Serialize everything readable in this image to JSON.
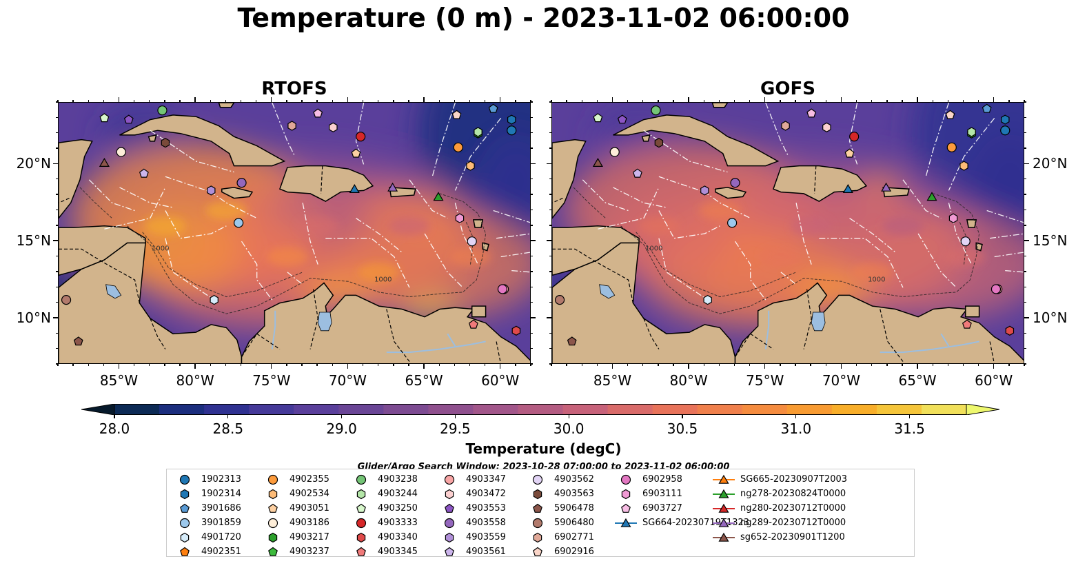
{
  "title": "Temperature (0 m) - 2023-11-02 06:00:00",
  "panels": [
    {
      "title": "RTOFS",
      "variant": "rtofs"
    },
    {
      "title": "GOFS",
      "variant": "gofs"
    }
  ],
  "map": {
    "lon_range": [
      -89,
      -58
    ],
    "lat_range": [
      7,
      24
    ],
    "lon_ticks": [
      "85°W",
      "80°W",
      "75°W",
      "70°W",
      "65°W",
      "60°W"
    ],
    "lat_ticks": [
      "20°N",
      "15°N",
      "10°N"
    ],
    "contour_labels": [
      "1000",
      "1000"
    ],
    "land_color": "#d2b48c",
    "water_color": "#9cbee0"
  },
  "colorbar": {
    "label": "Temperature (degC)",
    "tick_labels": [
      "28.0",
      "28.5",
      "29.0",
      "29.5",
      "30.0",
      "30.5",
      "31.0",
      "31.5"
    ],
    "vmin": 28.0,
    "vmax": 31.5,
    "colors": [
      "#06192b",
      "#0c2a55",
      "#1b2e7e",
      "#2f3191",
      "#453999",
      "#5a3f9b",
      "#6a4596",
      "#7d4b92",
      "#8f508e",
      "#a2568a",
      "#b45c82",
      "#c7627a",
      "#d96b6a",
      "#e8735a",
      "#f0804c",
      "#f58c3f",
      "#f89b32",
      "#f8ae2a",
      "#f5c53a",
      "#f1e05a",
      "#eef86e"
    ]
  },
  "search_window": "Glider/Argo Search Window: 2023-10-28 07:00:00 to 2023-11-02 06:00:00",
  "legend": [
    {
      "id": "1902313",
      "marker": "circle",
      "color": "#1f77b4"
    },
    {
      "id": "1902314",
      "marker": "hexagon",
      "color": "#1f77b4"
    },
    {
      "id": "3901686",
      "marker": "pentagon",
      "color": "#5a9bd5"
    },
    {
      "id": "3901859",
      "marker": "circle",
      "color": "#9cc8ec"
    },
    {
      "id": "4901720",
      "marker": "hexagon",
      "color": "#d6ecfa"
    },
    {
      "id": "4902351",
      "marker": "pentagon",
      "color": "#ff7f0e"
    },
    {
      "id": "4902355",
      "marker": "circle",
      "color": "#fd9b3c"
    },
    {
      "id": "4902534",
      "marker": "hexagon",
      "color": "#fdbb77"
    },
    {
      "id": "4903051",
      "marker": "pentagon",
      "color": "#fdd0a2"
    },
    {
      "id": "4903186",
      "marker": "circle",
      "color": "#feeed9"
    },
    {
      "id": "4903217",
      "marker": "hexagon",
      "color": "#2ca02c"
    },
    {
      "id": "4903237",
      "marker": "pentagon",
      "color": "#3cba3c"
    },
    {
      "id": "4903238",
      "marker": "circle",
      "color": "#74c476"
    },
    {
      "id": "4903244",
      "marker": "hexagon",
      "color": "#b4e6a8"
    },
    {
      "id": "4903250",
      "marker": "pentagon",
      "color": "#d8f7cc"
    },
    {
      "id": "4903333",
      "marker": "circle",
      "color": "#d62728"
    },
    {
      "id": "4903340",
      "marker": "hexagon",
      "color": "#e04a4a"
    },
    {
      "id": "4903345",
      "marker": "pentagon",
      "color": "#f07a7a"
    },
    {
      "id": "4903347",
      "marker": "circle",
      "color": "#f8a5a5"
    },
    {
      "id": "4903472",
      "marker": "hexagon",
      "color": "#fcd0d0"
    },
    {
      "id": "4903553",
      "marker": "pentagon",
      "color": "#8c55c4"
    },
    {
      "id": "4903558",
      "marker": "circle",
      "color": "#9467bd"
    },
    {
      "id": "4903559",
      "marker": "hexagon",
      "color": "#b08fd8"
    },
    {
      "id": "4903561",
      "marker": "pentagon",
      "color": "#ccb5ec"
    },
    {
      "id": "4903562",
      "marker": "circle",
      "color": "#e2d4f5"
    },
    {
      "id": "4903563",
      "marker": "hexagon",
      "color": "#7a4a3a"
    },
    {
      "id": "5906478",
      "marker": "pentagon",
      "color": "#8c564b"
    },
    {
      "id": "5906480",
      "marker": "circle",
      "color": "#b27a6c"
    },
    {
      "id": "6902771",
      "marker": "hexagon",
      "color": "#e0a898"
    },
    {
      "id": "6902916",
      "marker": "pentagon",
      "color": "#fad5c8"
    },
    {
      "id": "6902958",
      "marker": "circle",
      "color": "#e377c2"
    },
    {
      "id": "6903111",
      "marker": "hexagon",
      "color": "#f09ad4"
    },
    {
      "id": "6903727",
      "marker": "pentagon",
      "color": "#f7bde4"
    },
    {
      "id": "SG664-20230719T1323",
      "marker": "triangle",
      "color": "#1f77b4"
    },
    {
      "id": "SG665-20230907T2003",
      "marker": "triangle",
      "color": "#ff7f0e"
    },
    {
      "id": "ng278-20230824T0000",
      "marker": "triangle",
      "color": "#2ca02c"
    },
    {
      "id": "ng280-20230712T0000",
      "marker": "triangle",
      "color": "#d62728"
    },
    {
      "id": "ng289-20230712T0000",
      "marker": "triangle",
      "color": "#9467bd"
    },
    {
      "id": "sg652-20230901T1200",
      "marker": "triangle",
      "color": "#8c564b"
    }
  ],
  "observations": [
    {
      "id": "1902313",
      "lon": -59.3,
      "lat": 22.2
    },
    {
      "id": "1902314",
      "lon": -59.3,
      "lat": 22.9
    },
    {
      "id": "3901686",
      "lon": -60.5,
      "lat": 23.6
    },
    {
      "id": "3901859",
      "lon": -77.2,
      "lat": 16.2
    },
    {
      "id": "4901720",
      "lon": -78.8,
      "lat": 11.2
    },
    {
      "id": "4902355",
      "lon": -62.8,
      "lat": 21.1
    },
    {
      "id": "4902534",
      "lon": -62.0,
      "lat": 19.9
    },
    {
      "id": "4903051",
      "lon": -69.5,
      "lat": 20.7
    },
    {
      "id": "4903186",
      "lon": -84.9,
      "lat": 20.8
    },
    {
      "id": "4903217",
      "lon": -61.5,
      "lat": 22.0
    },
    {
      "id": "4903238",
      "lon": -82.2,
      "lat": 23.5
    },
    {
      "id": "4903244",
      "lon": -61.5,
      "lat": 22.1
    },
    {
      "id": "4903250",
      "lon": -86.0,
      "lat": 23.0
    },
    {
      "id": "4903333",
      "lon": -69.2,
      "lat": 21.8
    },
    {
      "id": "4903340",
      "lon": -59.0,
      "lat": 9.2
    },
    {
      "id": "4903345",
      "lon": -61.8,
      "lat": 9.6
    },
    {
      "id": "4903347",
      "lon": -59.8,
      "lat": 11.9
    },
    {
      "id": "4903472",
      "lon": -71.0,
      "lat": 22.4
    },
    {
      "id": "4903553",
      "lon": -84.4,
      "lat": 22.9
    },
    {
      "id": "4903558",
      "lon": -77.0,
      "lat": 18.8
    },
    {
      "id": "4903559",
      "lon": -79.0,
      "lat": 18.3
    },
    {
      "id": "4903561",
      "lon": -83.4,
      "lat": 19.4
    },
    {
      "id": "4903562",
      "lon": -61.9,
      "lat": 15.0
    },
    {
      "id": "4903563",
      "lon": -82.0,
      "lat": 21.4
    },
    {
      "id": "5906478",
      "lon": -87.7,
      "lat": 8.5
    },
    {
      "id": "5906480",
      "lon": -88.5,
      "lat": 11.2
    },
    {
      "id": "6902771",
      "lon": -73.7,
      "lat": 22.5
    },
    {
      "id": "6902916",
      "lon": -62.9,
      "lat": 23.2
    },
    {
      "id": "6902958",
      "lon": -59.9,
      "lat": 11.9
    },
    {
      "id": "6903111",
      "lon": -62.7,
      "lat": 16.5
    },
    {
      "id": "6903727",
      "lon": -72.0,
      "lat": 23.3
    },
    {
      "id": "SG664-20230719T1323",
      "lon": -69.6,
      "lat": 18.4
    },
    {
      "id": "ng278-20230824T0000",
      "lon": -64.1,
      "lat": 17.9
    },
    {
      "id": "ng289-20230712T0000",
      "lon": -67.1,
      "lat": 18.5
    },
    {
      "id": "sg652-20230901T1200",
      "lon": -86.0,
      "lat": 20.1
    }
  ]
}
